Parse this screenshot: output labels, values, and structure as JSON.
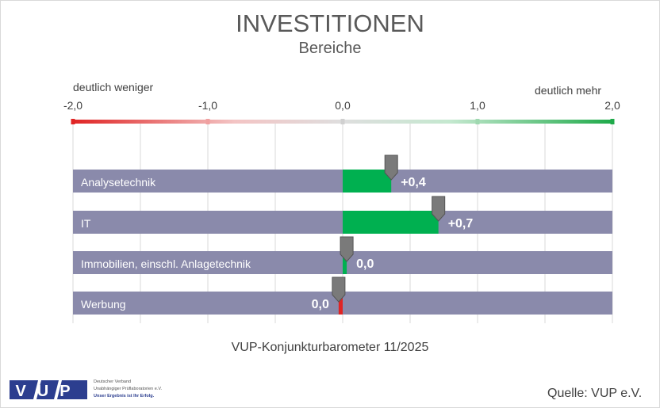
{
  "chart_data": {
    "type": "bar",
    "title": "INVESTITIONEN",
    "subtitle": "Bereiche",
    "left_label": "deutlich weniger",
    "right_label": "deutlich mehr",
    "xlim": [
      -2.0,
      2.0
    ],
    "ticks": [
      {
        "value": -2.0,
        "label": "-2,0",
        "color": "#e02424"
      },
      {
        "value": -1.0,
        "label": "-1,0",
        "color": "#f0a0a0"
      },
      {
        "value": 0.0,
        "label": "0,0",
        "color": "#d0d0d0"
      },
      {
        "value": 1.0,
        "label": "1,0",
        "color": "#9fd8b0"
      },
      {
        "value": 2.0,
        "label": "2,0",
        "color": "#1faa4a"
      }
    ],
    "categories": [
      "Analysetechnik",
      "IT",
      "Immobilien, einschl. Anlagetechnik",
      "Werbung"
    ],
    "values": [
      0.36,
      0.71,
      0.03,
      -0.03
    ],
    "value_labels": [
      "+0,4",
      "+0,7",
      "0,0",
      "0,0"
    ],
    "colors": {
      "track": "#8a8aab",
      "positive": "#00b050",
      "negative": "#e02424",
      "marker": "#7a7a7a"
    },
    "footer": "VUP-Konjunkturbarometer 11/2025",
    "source": "Quelle: VUP e.V."
  },
  "logo": {
    "letters": "VUP",
    "line1": "Deutscher Verband",
    "line2": "Unabhängiger Prüflaboratorien e.V.",
    "line3": "Unser Ergebnis ist Ihr Erfolg."
  }
}
